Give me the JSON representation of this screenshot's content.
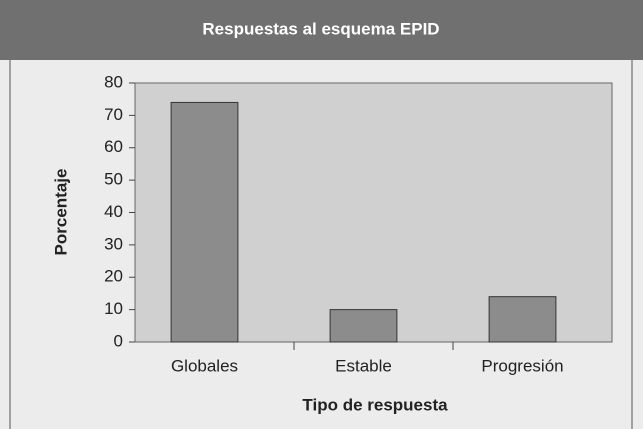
{
  "chart_data": {
    "type": "bar",
    "title": "Respuestas al esquema EPID",
    "x_label": "Tipo de respuesta",
    "y_label": "Porcentaje",
    "categories": [
      "Globales",
      "Estable",
      "Progresión"
    ],
    "values": [
      74,
      10,
      14
    ],
    "color": "#8c8c8c",
    "ylim": [
      0,
      80
    ],
    "yticks": [
      0,
      10,
      20,
      30,
      40,
      50,
      60,
      70,
      80
    ],
    "grid": false
  }
}
